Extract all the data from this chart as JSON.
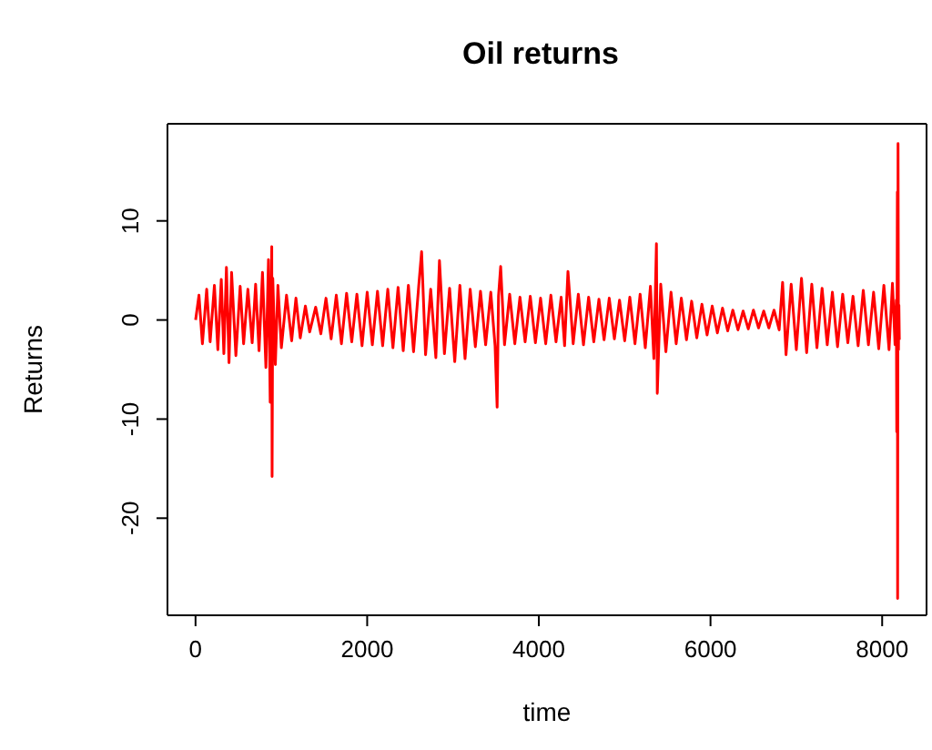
{
  "chart_data": {
    "type": "line",
    "title": "Oil returns",
    "xlabel": "time",
    "ylabel": "Returns",
    "xlim": [
      -327,
      8517
    ],
    "ylim": [
      -29.8,
      19.8
    ],
    "xticks": [
      0,
      2000,
      4000,
      6000,
      8000
    ],
    "yticks": [
      -20,
      -10,
      0,
      10
    ],
    "marker": "none",
    "line_style": "solid",
    "series": [
      {
        "color": "#ff0000",
        "x": [
          1,
          40,
          80,
          130,
          170,
          220,
          260,
          300,
          330,
          360,
          390,
          420,
          470,
          520,
          560,
          610,
          660,
          700,
          740,
          780,
          820,
          850,
          870,
          888,
          892,
          900,
          930,
          960,
          1000,
          1060,
          1120,
          1170,
          1220,
          1280,
          1330,
          1400,
          1460,
          1520,
          1580,
          1640,
          1700,
          1760,
          1820,
          1880,
          1940,
          2000,
          2060,
          2120,
          2180,
          2240,
          2300,
          2360,
          2420,
          2480,
          2540,
          2600,
          2634,
          2680,
          2740,
          2800,
          2842,
          2900,
          2960,
          3020,
          3080,
          3140,
          3200,
          3260,
          3320,
          3380,
          3440,
          3490,
          3514,
          3530,
          3555,
          3600,
          3660,
          3720,
          3780,
          3840,
          3900,
          3960,
          4020,
          4080,
          4140,
          4200,
          4260,
          4300,
          4339,
          4400,
          4460,
          4520,
          4580,
          4640,
          4700,
          4760,
          4820,
          4880,
          4940,
          5000,
          5060,
          5120,
          5180,
          5240,
          5300,
          5340,
          5370,
          5380,
          5420,
          5480,
          5540,
          5600,
          5660,
          5720,
          5780,
          5840,
          5900,
          5960,
          6020,
          6080,
          6140,
          6200,
          6260,
          6320,
          6380,
          6440,
          6500,
          6560,
          6620,
          6680,
          6740,
          6800,
          6840,
          6880,
          6940,
          7000,
          7060,
          7120,
          7180,
          7240,
          7300,
          7360,
          7420,
          7480,
          7540,
          7600,
          7660,
          7720,
          7780,
          7840,
          7900,
          7960,
          8020,
          8080,
          8120,
          8150,
          8165,
          8170,
          8177,
          8180,
          8185,
          8190,
          8195,
          8200
        ],
        "values": [
          0,
          2.5,
          -2.4,
          3.1,
          -2.2,
          3.5,
          -3,
          4.1,
          -3.4,
          5.3,
          -4.3,
          4.8,
          -3.6,
          3.4,
          -2.4,
          3.1,
          -2.3,
          3.6,
          -3.1,
          4.8,
          -4.8,
          6.1,
          -8.3,
          7.4,
          -15.8,
          4.2,
          -4.5,
          3.5,
          -2.8,
          2.5,
          -2.1,
          2.2,
          -1.8,
          1.4,
          -1.2,
          1.3,
          -1.4,
          2.2,
          -1.9,
          2.5,
          -2.4,
          2.7,
          -2.2,
          2.6,
          -2.6,
          2.8,
          -2.5,
          2.9,
          -2.6,
          3.1,
          -2.8,
          3.3,
          -3.1,
          3.5,
          -3.2,
          3.4,
          6.9,
          -3.5,
          3.1,
          -3.8,
          6,
          -3.4,
          3.2,
          -4.2,
          3.5,
          -3.9,
          3.1,
          -2.7,
          2.9,
          -2.5,
          2.8,
          -2.6,
          -8.8,
          2.4,
          5.4,
          -2.5,
          2.6,
          -2.4,
          2.3,
          -2.2,
          2.4,
          -2.3,
          2.2,
          -2.4,
          2.5,
          -2.2,
          2.3,
          -2.6,
          4.9,
          -2.4,
          2.6,
          -2.5,
          2.3,
          -2.2,
          2.1,
          -2,
          2.2,
          -1.9,
          2,
          -2.1,
          2.3,
          -2.4,
          2.6,
          -2.8,
          3.4,
          -3.9,
          7.7,
          -7.4,
          3.6,
          -3.2,
          2.8,
          -2.4,
          2.2,
          -2,
          1.9,
          -1.8,
          1.6,
          -1.5,
          1.4,
          -1.3,
          1.2,
          -1.1,
          1,
          -1,
          0.9,
          -0.9,
          1,
          -0.8,
          0.9,
          -0.8,
          1,
          -1,
          3.8,
          -3.5,
          3.6,
          -3,
          4.2,
          -3.3,
          3.6,
          -2.8,
          3.2,
          -2.5,
          2.8,
          -2.7,
          2.6,
          -2.3,
          2.4,
          -2.6,
          3,
          -2.5,
          2.8,
          -2.9,
          3.5,
          -3,
          3.7,
          -2.5,
          2,
          -11.3,
          12.9,
          -28.1,
          17.8,
          -3,
          1.5,
          -2
        ]
      }
    ]
  }
}
